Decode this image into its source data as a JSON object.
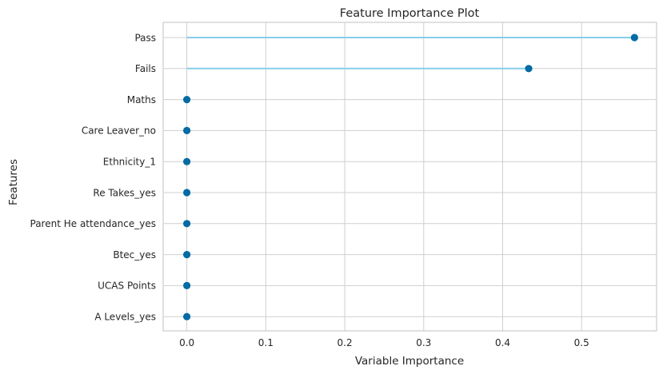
{
  "chart_data": {
    "type": "scatter",
    "style": "lollipop",
    "title": "Feature Importance Plot",
    "xlabel": "Variable Importance",
    "ylabel": "Features",
    "xlim": [
      -0.03,
      0.595
    ],
    "xticks": [
      0.0,
      0.1,
      0.2,
      0.3,
      0.4,
      0.5
    ],
    "xtick_labels": [
      "0.0",
      "0.1",
      "0.2",
      "0.3",
      "0.4",
      "0.5"
    ],
    "grid": true,
    "categories": [
      "Pass",
      "Fails",
      "Maths",
      "Care Leaver_no",
      "Ethnicity_1",
      "Re Takes_yes",
      "Parent He attendance_yes",
      "Btec_yes",
      "UCAS Points",
      "A Levels_yes"
    ],
    "values": [
      0.567,
      0.433,
      0.0,
      0.0,
      0.0,
      0.0,
      0.0,
      0.0,
      0.0,
      0.0
    ],
    "colors": {
      "stem": "#87CEEB",
      "marker": "#006BA4",
      "grid": "#CFCFCF",
      "frame": "#CCCCCC",
      "text": "#262626"
    }
  }
}
